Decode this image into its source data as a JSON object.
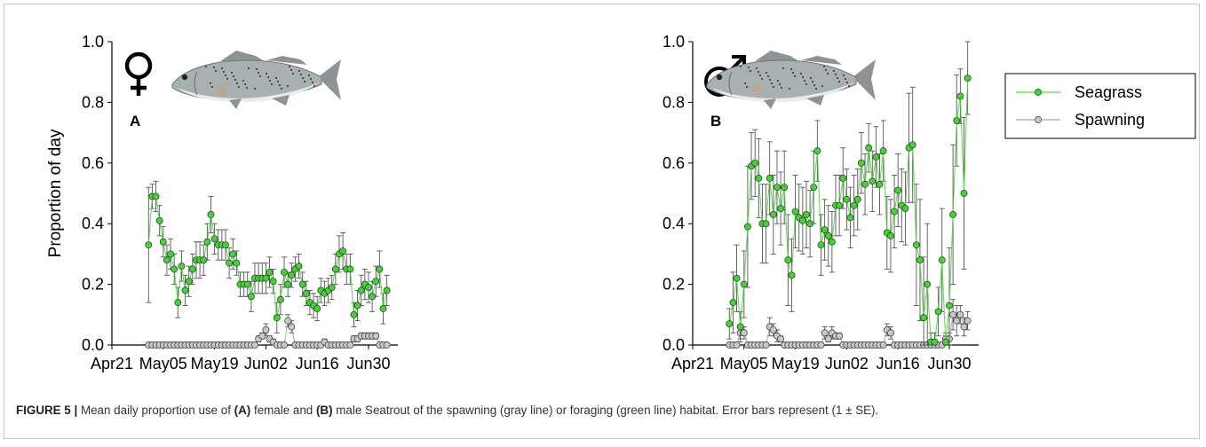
{
  "caption": {
    "label": "FIGURE 5 |",
    "p1": " Mean daily proportion use of ",
    "a": "(A)",
    "p2": " female and ",
    "b": "(B)",
    "p3": " male Seatrout of the spawning (gray line) or foraging (green line) habitat. Error bars represent (1 ± SE)."
  },
  "colors": {
    "seagrass": "#3ed62f",
    "seagrass_line": "#5bd84a",
    "spawning": "#c8c8c8",
    "spawning_line": "#aaaaaa",
    "errorbar": "#555555"
  },
  "chart_data": [
    {
      "type": "line",
      "panel": "A",
      "sex_symbol": "♀",
      "sex_icon": "female-symbol-icon",
      "fish_icon": "seatrout-fish-icon",
      "title": "",
      "xlabel": "",
      "ylabel": "Proportion of day",
      "ylim": [
        0,
        1.0
      ],
      "yticks": [
        "0.0",
        "0.2",
        "0.4",
        "0.6",
        "0.8",
        "1.0"
      ],
      "xticks": [
        "Apr21",
        "May05",
        "May19",
        "Jun02",
        "Jun16",
        "Jun30"
      ],
      "xlim": [
        "2014-04-21",
        "2014-07-08"
      ],
      "grid": false,
      "legend": "none",
      "x": [
        "2014-05-01",
        "2014-05-02",
        "2014-05-03",
        "2014-05-04",
        "2014-05-05",
        "2014-05-06",
        "2014-05-07",
        "2014-05-08",
        "2014-05-09",
        "2014-05-10",
        "2014-05-11",
        "2014-05-12",
        "2014-05-13",
        "2014-05-14",
        "2014-05-15",
        "2014-05-16",
        "2014-05-17",
        "2014-05-18",
        "2014-05-19",
        "2014-05-20",
        "2014-05-21",
        "2014-05-22",
        "2014-05-23",
        "2014-05-24",
        "2014-05-25",
        "2014-05-26",
        "2014-05-27",
        "2014-05-28",
        "2014-05-29",
        "2014-05-30",
        "2014-05-31",
        "2014-06-01",
        "2014-06-02",
        "2014-06-03",
        "2014-06-04",
        "2014-06-05",
        "2014-06-06",
        "2014-06-07",
        "2014-06-08",
        "2014-06-09",
        "2014-06-10",
        "2014-06-11",
        "2014-06-12",
        "2014-06-13",
        "2014-06-14",
        "2014-06-15",
        "2014-06-16",
        "2014-06-17",
        "2014-06-18",
        "2014-06-19",
        "2014-06-20",
        "2014-06-21",
        "2014-06-22",
        "2014-06-23",
        "2014-06-24",
        "2014-06-25",
        "2014-06-26",
        "2014-06-27",
        "2014-06-28",
        "2014-06-29",
        "2014-06-30",
        "2014-07-01",
        "2014-07-02",
        "2014-07-03",
        "2014-07-04",
        "2014-07-05"
      ],
      "series": [
        {
          "name": "Seagrass",
          "color": "#3ed62f",
          "values": [
            0.33,
            0.49,
            0.49,
            0.41,
            0.34,
            0.28,
            0.3,
            0.25,
            0.14,
            0.26,
            0.18,
            0.21,
            0.25,
            0.28,
            0.28,
            0.28,
            0.34,
            0.43,
            0.35,
            0.33,
            0.33,
            0.33,
            0.27,
            0.3,
            0.27,
            0.2,
            0.2,
            0.2,
            0.16,
            0.22,
            0.22,
            0.22,
            0.22,
            0.24,
            0.21,
            0.09,
            0.15,
            0.24,
            0.2,
            0.23,
            0.25,
            0.26,
            0.2,
            0.17,
            0.14,
            0.13,
            0.12,
            0.18,
            0.17,
            0.18,
            0.19,
            0.25,
            0.3,
            0.31,
            0.25,
            0.25,
            0.1,
            0.13,
            0.18,
            0.2,
            0.19,
            0.16,
            0.21,
            0.25,
            0.12,
            0.18
          ],
          "errors": [
            0.19,
            0.04,
            0.05,
            0.05,
            0.05,
            0.05,
            0.05,
            0.05,
            0.05,
            0.05,
            0.05,
            0.05,
            0.05,
            0.06,
            0.06,
            0.05,
            0.06,
            0.06,
            0.05,
            0.05,
            0.05,
            0.05,
            0.05,
            0.05,
            0.04,
            0.04,
            0.04,
            0.04,
            0.05,
            0.05,
            0.05,
            0.05,
            0.05,
            0.05,
            0.04,
            0.05,
            0.05,
            0.05,
            0.04,
            0.04,
            0.04,
            0.04,
            0.04,
            0.04,
            0.04,
            0.04,
            0.04,
            0.04,
            0.04,
            0.04,
            0.04,
            0.05,
            0.06,
            0.06,
            0.05,
            0.05,
            0.04,
            0.05,
            0.05,
            0.05,
            0.05,
            0.05,
            0.05,
            0.06,
            0.05,
            0.05
          ]
        },
        {
          "name": "Spawning",
          "color": "#c8c8c8",
          "values": [
            0,
            0,
            0,
            0,
            0,
            0,
            0,
            0,
            0,
            0,
            0,
            0,
            0,
            0,
            0,
            0,
            0,
            0,
            0,
            0,
            0,
            0,
            0,
            0,
            0,
            0,
            0,
            0,
            0,
            0,
            0.02,
            0.03,
            0.05,
            0.02,
            0.01,
            0,
            0,
            0,
            0.08,
            0.06,
            0,
            0,
            0,
            0,
            0,
            0,
            0,
            0,
            0.01,
            0,
            0,
            0,
            0,
            0,
            0,
            0,
            0.02,
            0.02,
            0.03,
            0.03,
            0.03,
            0.03,
            0.03,
            0,
            0,
            0
          ],
          "errors": [
            0,
            0,
            0,
            0,
            0,
            0,
            0,
            0,
            0,
            0,
            0,
            0,
            0,
            0,
            0,
            0,
            0,
            0,
            0,
            0,
            0,
            0,
            0,
            0,
            0,
            0,
            0,
            0,
            0,
            0,
            0.01,
            0.01,
            0.02,
            0.01,
            0.01,
            0,
            0,
            0,
            0.02,
            0.02,
            0,
            0,
            0,
            0,
            0,
            0,
            0,
            0,
            0.01,
            0,
            0,
            0,
            0,
            0,
            0,
            0,
            0.01,
            0.01,
            0.01,
            0.01,
            0.01,
            0.01,
            0.01,
            0,
            0,
            0
          ]
        }
      ]
    },
    {
      "type": "line",
      "panel": "B",
      "sex_symbol": "♂",
      "sex_icon": "male-symbol-icon",
      "fish_icon": "seatrout-fish-icon",
      "title": "",
      "xlabel": "",
      "ylabel": "",
      "ylim": [
        0,
        1.0
      ],
      "yticks": [
        "0.0",
        "0.2",
        "0.4",
        "0.6",
        "0.8",
        "1.0"
      ],
      "xticks": [
        "Apr21",
        "May05",
        "May19",
        "Jun02",
        "Jun16",
        "Jun30"
      ],
      "xlim": [
        "2014-04-21",
        "2014-07-08"
      ],
      "grid": false,
      "legend": "top-right",
      "legend_entries": [
        "Seagrass",
        "Spawning"
      ],
      "x": [
        "2014-05-01",
        "2014-05-02",
        "2014-05-03",
        "2014-05-04",
        "2014-05-05",
        "2014-05-06",
        "2014-05-07",
        "2014-05-08",
        "2014-05-09",
        "2014-05-10",
        "2014-05-11",
        "2014-05-12",
        "2014-05-13",
        "2014-05-14",
        "2014-05-15",
        "2014-05-16",
        "2014-05-17",
        "2014-05-18",
        "2014-05-19",
        "2014-05-20",
        "2014-05-21",
        "2014-05-22",
        "2014-05-23",
        "2014-05-24",
        "2014-05-25",
        "2014-05-26",
        "2014-05-27",
        "2014-05-28",
        "2014-05-29",
        "2014-05-30",
        "2014-05-31",
        "2014-06-01",
        "2014-06-02",
        "2014-06-03",
        "2014-06-04",
        "2014-06-05",
        "2014-06-06",
        "2014-06-07",
        "2014-06-08",
        "2014-06-09",
        "2014-06-10",
        "2014-06-11",
        "2014-06-12",
        "2014-06-13",
        "2014-06-14",
        "2014-06-15",
        "2014-06-16",
        "2014-06-17",
        "2014-06-18",
        "2014-06-19",
        "2014-06-20",
        "2014-06-21",
        "2014-06-22",
        "2014-06-23",
        "2014-06-24",
        "2014-06-25",
        "2014-06-26",
        "2014-06-27",
        "2014-06-28",
        "2014-06-29",
        "2014-06-30",
        "2014-07-01",
        "2014-07-02",
        "2014-07-03",
        "2014-07-04",
        "2014-07-05"
      ],
      "series": [
        {
          "name": "Seagrass",
          "color": "#3ed62f",
          "values": [
            0.07,
            0.14,
            0.22,
            0.06,
            0.2,
            0.39,
            0.59,
            0.6,
            0.55,
            0.4,
            0.4,
            0.55,
            0.43,
            0.52,
            0.45,
            0.52,
            0.28,
            0.23,
            0.44,
            0.42,
            0.41,
            0.43,
            0.4,
            0.52,
            0.64,
            0.33,
            0.38,
            0.36,
            0.34,
            0.46,
            0.46,
            0.55,
            0.48,
            0.42,
            0.46,
            0.48,
            0.6,
            0.53,
            0.65,
            0.54,
            0.62,
            0.53,
            0.64,
            0.37,
            0.36,
            0.44,
            0.51,
            0.46,
            0.45,
            0.65,
            0.66,
            0.33,
            0.28,
            0.09,
            0.2,
            0.01,
            0.01,
            0.11,
            0.28,
            0.01,
            0.13,
            0.43,
            0.74,
            0.82,
            0.5,
            0.88
          ],
          "errors": [
            0.05,
            0.1,
            0.11,
            0.05,
            0.11,
            0.2,
            0.11,
            0.11,
            0.13,
            0.13,
            0.13,
            0.12,
            0.13,
            0.12,
            0.12,
            0.12,
            0.15,
            0.12,
            0.12,
            0.11,
            0.11,
            0.11,
            0.11,
            0.12,
            0.1,
            0.1,
            0.1,
            0.1,
            0.1,
            0.1,
            0.1,
            0.1,
            0.1,
            0.1,
            0.1,
            0.1,
            0.1,
            0.1,
            0.08,
            0.1,
            0.1,
            0.1,
            0.1,
            0.12,
            0.12,
            0.12,
            0.12,
            0.12,
            0.12,
            0.18,
            0.19,
            0.2,
            0.2,
            0.2,
            0.2,
            0.03,
            0.03,
            0.08,
            0.17,
            0.03,
            0.19,
            0.23,
            0.15,
            0.09,
            0.25,
            0.12
          ]
        },
        {
          "name": "Spawning",
          "color": "#c8c8c8",
          "values": [
            0,
            0,
            0,
            0.04,
            0.04,
            0,
            0,
            0,
            0,
            0,
            0,
            0.06,
            0.05,
            0.03,
            0.02,
            0,
            0,
            0,
            0,
            0,
            0,
            0,
            0,
            0,
            0,
            0,
            0.04,
            0.02,
            0.04,
            0.03,
            0.03,
            0,
            0,
            0,
            0,
            0,
            0,
            0,
            0,
            0,
            0,
            0,
            0,
            0.05,
            0.04,
            0,
            0,
            0,
            0,
            0,
            0,
            0,
            0,
            0,
            0,
            0,
            0,
            0,
            0,
            0.02,
            0.02,
            0.1,
            0.08,
            0.1,
            0.06,
            0.08
          ],
          "errors": [
            0,
            0,
            0,
            0.02,
            0.02,
            0,
            0,
            0,
            0,
            0,
            0,
            0.03,
            0.02,
            0.02,
            0.01,
            0,
            0,
            0,
            0,
            0,
            0,
            0,
            0,
            0,
            0,
            0,
            0.02,
            0.01,
            0.02,
            0.01,
            0.01,
            0,
            0,
            0,
            0,
            0,
            0,
            0,
            0,
            0,
            0,
            0,
            0,
            0.02,
            0.02,
            0,
            0,
            0,
            0,
            0,
            0,
            0,
            0,
            0,
            0,
            0,
            0,
            0,
            0,
            0.01,
            0.02,
            0.05,
            0.05,
            0.03,
            0.03,
            0.03
          ]
        }
      ]
    }
  ]
}
